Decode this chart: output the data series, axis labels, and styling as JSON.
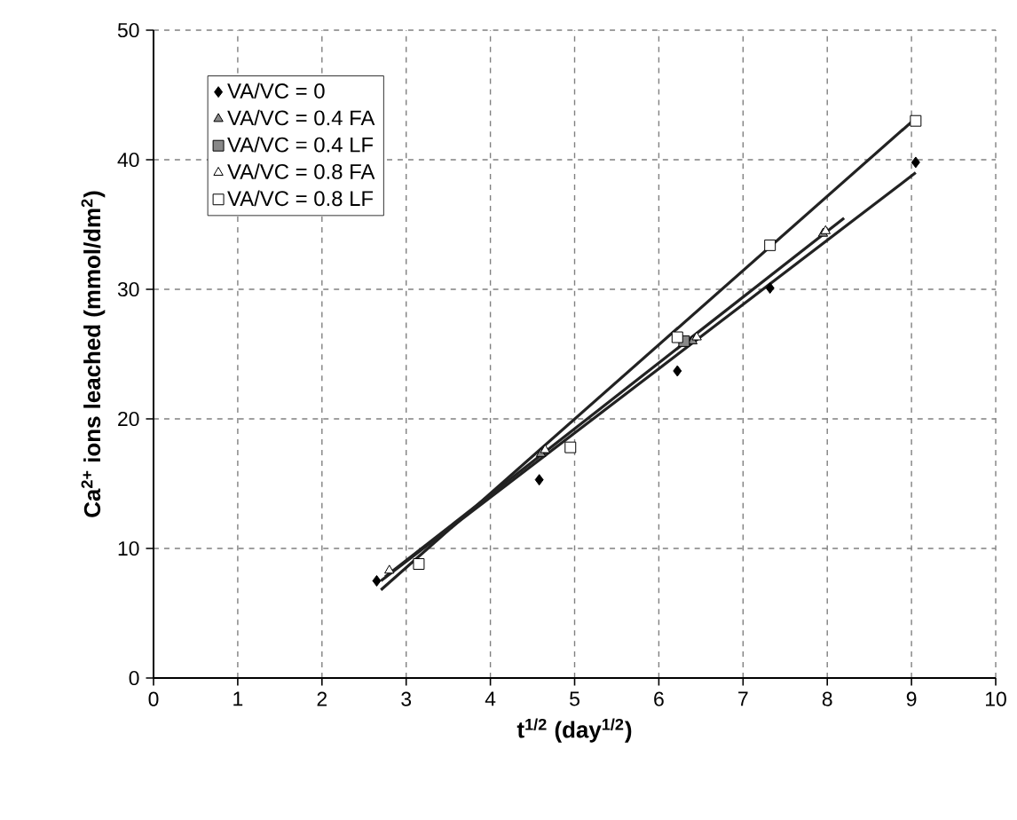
{
  "chart_data": {
    "type": "scatter",
    "xlabel": "t$^{1/2}$ (day$^{1/2}$)",
    "ylabel": "Ca$^{2+}$ ions leached (mmol/dm$^{2}$)",
    "xlim": [
      0,
      10
    ],
    "ylim": [
      0,
      50
    ],
    "xticks": [
      0,
      1,
      2,
      3,
      4,
      5,
      6,
      7,
      8,
      9,
      10
    ],
    "yticks": [
      0,
      10,
      20,
      30,
      40,
      50
    ],
    "grid": true,
    "legend": "top left",
    "series": [
      {
        "name": "VA/VC = 0",
        "color": "#000000",
        "marker": "diamond",
        "x": [
          2.65,
          4.58,
          6.22,
          7.32,
          9.05
        ],
        "values": [
          7.5,
          15.3,
          23.7,
          30.1,
          39.8
        ]
      },
      {
        "name": "VA/VC = 0.4 FA",
        "color": "#888888",
        "marker": "triangle",
        "x": [
          4.6,
          6.4,
          7.95
        ],
        "values": [
          17.3,
          26.0,
          34.3
        ]
      },
      {
        "name": "VA/VC = 0.4 LF",
        "color": "#888888",
        "marker": "square",
        "x": [
          6.3
        ],
        "values": [
          26.0
        ]
      },
      {
        "name": "VA/VC = 0.8 FA",
        "color": "#ffffff",
        "marker": "triangle",
        "x": [
          2.8,
          4.65,
          6.45,
          7.98
        ],
        "values": [
          8.3,
          17.6,
          26.3,
          34.5
        ]
      },
      {
        "name": "VA/VC = 0.8 LF",
        "color": "#ffffff",
        "marker": "square",
        "x": [
          3.15,
          4.95,
          6.22,
          7.32,
          9.05
        ],
        "values": [
          8.8,
          17.8,
          26.3,
          33.4,
          43.0
        ]
      },
      {
        "type": "line",
        "color": "#222222",
        "marker": "none",
        "x": [
          2.7,
          9.05
        ],
        "values": [
          6.8,
          43.2
        ]
      },
      {
        "type": "line",
        "color": "#222222",
        "marker": "none",
        "x": [
          2.7,
          9.05
        ],
        "values": [
          7.5,
          39.0
        ]
      },
      {
        "type": "line",
        "color": "#222222",
        "marker": "none",
        "x": [
          2.75,
          8.2
        ],
        "values": [
          7.8,
          35.5
        ]
      }
    ]
  }
}
